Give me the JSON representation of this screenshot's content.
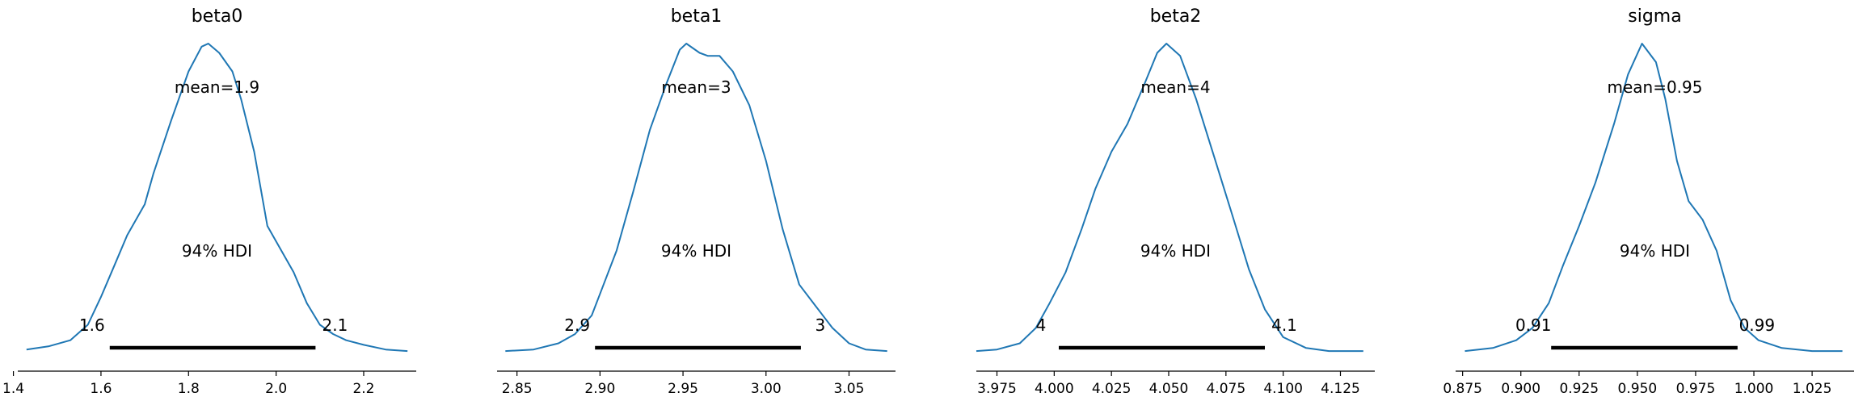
{
  "chart_data": [
    {
      "type": "area",
      "title": "beta0",
      "mean_label": "mean=1.9",
      "hdi_label": "94% HDI",
      "hdi_low_label": "1.6",
      "hdi_high_label": "2.1",
      "hdi": [
        1.62,
        2.09
      ],
      "xlim": [
        1.41,
        2.32
      ],
      "ticks": [
        1.4,
        1.6,
        1.8,
        2.0,
        2.2
      ],
      "tick_labels": [
        "1.4",
        "1.6",
        "1.8",
        "2.0",
        "2.2"
      ],
      "curve": {
        "x": [
          1.43,
          1.48,
          1.53,
          1.57,
          1.6,
          1.63,
          1.66,
          1.7,
          1.72,
          1.76,
          1.8,
          1.83,
          1.845,
          1.87,
          1.9,
          1.92,
          1.95,
          1.98,
          2.0,
          2.04,
          2.07,
          2.1,
          2.13,
          2.16,
          2.2,
          2.25,
          2.3
        ],
        "y": [
          0.01,
          0.02,
          0.04,
          0.09,
          0.18,
          0.28,
          0.38,
          0.48,
          0.58,
          0.75,
          0.91,
          0.99,
          1.0,
          0.97,
          0.91,
          0.82,
          0.65,
          0.41,
          0.36,
          0.26,
          0.16,
          0.09,
          0.06,
          0.04,
          0.025,
          0.01,
          0.005
        ]
      }
    },
    {
      "type": "area",
      "title": "beta1",
      "mean_label": "mean=3",
      "hdi_label": "94% HDI",
      "hdi_low_label": "2.9",
      "hdi_high_label": "3",
      "hdi": [
        2.897,
        3.021
      ],
      "xlim": [
        2.838,
        3.078
      ],
      "ticks": [
        2.85,
        2.9,
        2.95,
        3.0,
        3.05
      ],
      "tick_labels": [
        "2.85",
        "2.90",
        "2.95",
        "3.00",
        "3.05"
      ],
      "curve": {
        "x": [
          2.843,
          2.86,
          2.875,
          2.885,
          2.895,
          2.9,
          2.91,
          2.92,
          2.93,
          2.94,
          2.948,
          2.952,
          2.96,
          2.965,
          2.972,
          2.98,
          2.99,
          3.0,
          3.01,
          3.02,
          3.03,
          3.04,
          3.05,
          3.06,
          3.073
        ],
        "y": [
          0.005,
          0.01,
          0.03,
          0.06,
          0.12,
          0.19,
          0.33,
          0.52,
          0.72,
          0.87,
          0.98,
          1.0,
          0.97,
          0.96,
          0.96,
          0.91,
          0.8,
          0.62,
          0.4,
          0.22,
          0.15,
          0.08,
          0.03,
          0.01,
          0.005
        ]
      }
    },
    {
      "type": "area",
      "title": "beta2",
      "mean_label": "mean=4",
      "hdi_label": "94% HDI",
      "hdi_low_label": "4",
      "hdi_high_label": "4.1",
      "hdi": [
        4.002,
        4.092
      ],
      "xlim": [
        3.966,
        4.14
      ],
      "ticks": [
        3.975,
        4.0,
        4.025,
        4.05,
        4.075,
        4.1,
        4.125
      ],
      "tick_labels": [
        "3.975",
        "4.000",
        "4.025",
        "4.050",
        "4.075",
        "4.100",
        "4.125"
      ],
      "curve": {
        "x": [
          3.966,
          3.975,
          3.985,
          3.992,
          3.998,
          4.005,
          4.012,
          4.018,
          4.025,
          4.032,
          4.04,
          4.045,
          4.049,
          4.055,
          4.062,
          4.07,
          4.078,
          4.085,
          4.092,
          4.1,
          4.11,
          4.12,
          4.135
        ],
        "y": [
          0.005,
          0.01,
          0.03,
          0.08,
          0.16,
          0.26,
          0.4,
          0.53,
          0.65,
          0.74,
          0.88,
          0.97,
          1.0,
          0.96,
          0.82,
          0.63,
          0.44,
          0.27,
          0.14,
          0.05,
          0.015,
          0.005,
          0.005
        ]
      }
    },
    {
      "type": "area",
      "title": "sigma",
      "mean_label": "mean=0.95",
      "hdi_label": "94% HDI",
      "hdi_low_label": "0.91",
      "hdi_high_label": "0.99",
      "hdi": [
        0.913,
        0.993
      ],
      "xlim": [
        0.872,
        1.043
      ],
      "ticks": [
        0.875,
        0.9,
        0.925,
        0.95,
        0.975,
        1.0,
        1.025
      ],
      "tick_labels": [
        "0.875",
        "0.900",
        "0.925",
        "0.950",
        "0.975",
        "1.000",
        "1.025"
      ],
      "curve": {
        "x": [
          0.876,
          0.888,
          0.898,
          0.905,
          0.912,
          0.918,
          0.925,
          0.932,
          0.94,
          0.946,
          0.952,
          0.958,
          0.962,
          0.967,
          0.972,
          0.978,
          0.984,
          0.99,
          0.996,
          1.002,
          1.012,
          1.025,
          1.038
        ],
        "y": [
          0.005,
          0.015,
          0.04,
          0.08,
          0.16,
          0.28,
          0.41,
          0.55,
          0.74,
          0.9,
          1.0,
          0.94,
          0.82,
          0.62,
          0.49,
          0.43,
          0.33,
          0.17,
          0.08,
          0.04,
          0.015,
          0.005,
          0.005
        ]
      }
    }
  ]
}
